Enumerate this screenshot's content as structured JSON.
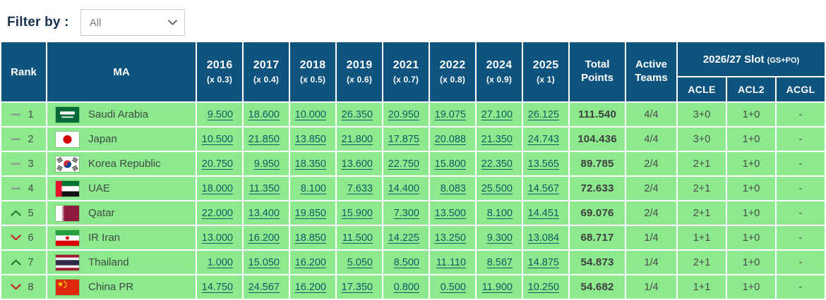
{
  "filter": {
    "label": "Filter by :",
    "value": "All",
    "options": [
      "All"
    ]
  },
  "colors": {
    "header_bg": "#0F537F",
    "row_green": "#8DE98E",
    "link_teal": "#0E5C63",
    "up_green": "#2E7D32",
    "down_red": "#C62B2B",
    "neutral_dash": "#8F8F8F"
  },
  "table": {
    "headers": {
      "rank": "Rank",
      "ma": "MA",
      "total_points": "Total Points",
      "active_teams": "Active Teams",
      "slot_label": "2026/27 Slot",
      "slot_note": "(GS+PO)",
      "slot_subcols": [
        "ACLE",
        "ACL2",
        "ACGL"
      ],
      "year_columns": [
        {
          "year": "2016",
          "multiplier": "(x 0.3)"
        },
        {
          "year": "2017",
          "multiplier": "(x 0.4)"
        },
        {
          "year": "2018",
          "multiplier": "(x 0.5)"
        },
        {
          "year": "2019",
          "multiplier": "(x 0.6)"
        },
        {
          "year": "2021",
          "multiplier": "(x 0.7)"
        },
        {
          "year": "2022",
          "multiplier": "(x 0.8)"
        },
        {
          "year": "2024",
          "multiplier": "(x 0.9)"
        },
        {
          "year": "2025",
          "multiplier": "(x 1)"
        }
      ]
    },
    "rows": [
      {
        "movement": "same",
        "rank": "1",
        "flag": "saudi-arabia",
        "country": "Saudi Arabia",
        "scores": [
          "9.500",
          "18.600",
          "10.000",
          "26.350",
          "20.950",
          "19.075",
          "27.100",
          "26.125"
        ],
        "total": "111.540",
        "active": "4/4",
        "slot_acle": "3+0",
        "slot_acl2": "1+0",
        "slot_acgl": "-"
      },
      {
        "movement": "same",
        "rank": "2",
        "flag": "japan",
        "country": "Japan",
        "scores": [
          "10.500",
          "21.850",
          "13.850",
          "21.800",
          "17.875",
          "20.088",
          "21.350",
          "24.743"
        ],
        "total": "104.436",
        "active": "4/4",
        "slot_acle": "3+0",
        "slot_acl2": "1+0",
        "slot_acgl": "-"
      },
      {
        "movement": "same",
        "rank": "3",
        "flag": "korea-republic",
        "country": "Korea Republic",
        "scores": [
          "20.750",
          "9.950",
          "18.350",
          "13.600",
          "22.750",
          "15.800",
          "22.350",
          "13.565"
        ],
        "total": "89.785",
        "active": "2/4",
        "slot_acle": "2+1",
        "slot_acl2": "1+0",
        "slot_acgl": "-"
      },
      {
        "movement": "same",
        "rank": "4",
        "flag": "uae",
        "country": "UAE",
        "scores": [
          "18.000",
          "11.350",
          "8.100",
          "7.633",
          "14.400",
          "8.083",
          "25.500",
          "14.567"
        ],
        "total": "72.633",
        "active": "2/4",
        "slot_acle": "2+1",
        "slot_acl2": "1+0",
        "slot_acgl": "-"
      },
      {
        "movement": "up",
        "rank": "5",
        "flag": "qatar",
        "country": "Qatar",
        "scores": [
          "22.000",
          "13.400",
          "19.850",
          "15.900",
          "7.300",
          "13.500",
          "8.100",
          "14.451"
        ],
        "total": "69.076",
        "active": "2/4",
        "slot_acle": "2+1",
        "slot_acl2": "1+0",
        "slot_acgl": "-"
      },
      {
        "movement": "down",
        "rank": "6",
        "flag": "ir-iran",
        "country": "IR Iran",
        "scores": [
          "13.000",
          "16.200",
          "18.850",
          "11.500",
          "14.225",
          "13.250",
          "9.300",
          "13.084"
        ],
        "total": "68.717",
        "active": "1/4",
        "slot_acle": "1+1",
        "slot_acl2": "1+0",
        "slot_acgl": "-"
      },
      {
        "movement": "up",
        "rank": "7",
        "flag": "thailand",
        "country": "Thailand",
        "scores": [
          "1.000",
          "15.050",
          "16.200",
          "5.050",
          "8.500",
          "11.110",
          "8.567",
          "14.875"
        ],
        "total": "54.873",
        "active": "1/4",
        "slot_acle": "2+1",
        "slot_acl2": "1+0",
        "slot_acgl": "-"
      },
      {
        "movement": "down",
        "rank": "8",
        "flag": "china-pr",
        "country": "China PR",
        "scores": [
          "14.750",
          "24.567",
          "16.200",
          "17.350",
          "0.800",
          "0.500",
          "11.900",
          "10.250"
        ],
        "total": "54.682",
        "active": "1/4",
        "slot_acle": "1+1",
        "slot_acl2": "1+0",
        "slot_acgl": "-"
      }
    ]
  }
}
